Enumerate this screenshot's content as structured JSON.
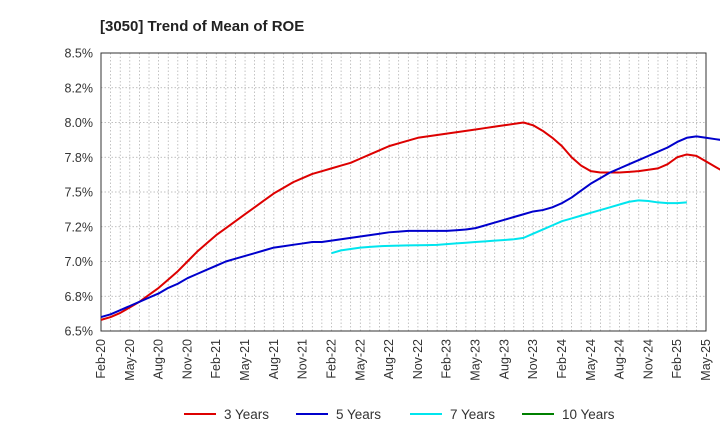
{
  "chart_data": {
    "type": "line",
    "title": "[3050]  Trend of Mean of ROE",
    "xlabel": "",
    "ylabel": "",
    "ylim": [
      6.5,
      8.5
    ],
    "yticks": [
      "6.5%",
      "6.8%",
      "7.0%",
      "7.2%",
      "7.5%",
      "7.8%",
      "8.0%",
      "8.2%",
      "8.5%"
    ],
    "xticks": [
      "Feb-20",
      "May-20",
      "Aug-20",
      "Nov-20",
      "Feb-21",
      "May-21",
      "Aug-21",
      "Nov-21",
      "Feb-22",
      "May-22",
      "Aug-22",
      "Nov-22",
      "Feb-23",
      "May-23",
      "Aug-23",
      "Nov-23",
      "Feb-24",
      "May-24",
      "Aug-24",
      "Nov-24",
      "Feb-25",
      "May-25"
    ],
    "grid": true,
    "legend_position": "bottom",
    "series": [
      {
        "name": "3 Years",
        "color": "#dd0000",
        "start_month": 0,
        "values": [
          6.58,
          6.6,
          6.63,
          6.67,
          6.71,
          6.76,
          6.81,
          6.87,
          6.93,
          7.0,
          7.07,
          7.13,
          7.19,
          7.24,
          7.29,
          7.34,
          7.39,
          7.44,
          7.49,
          7.53,
          7.57,
          7.6,
          7.63,
          7.65,
          7.67,
          7.69,
          7.71,
          7.74,
          7.77,
          7.8,
          7.83,
          7.85,
          7.87,
          7.89,
          7.9,
          7.91,
          7.92,
          7.93,
          7.94,
          7.95,
          7.96,
          7.97,
          7.98,
          7.99,
          8.0,
          7.98,
          7.94,
          7.89,
          7.83,
          7.75,
          7.69,
          7.65,
          7.64,
          7.64,
          7.64,
          7.645,
          7.65,
          7.66,
          7.67,
          7.7,
          7.75,
          7.77,
          7.76,
          7.72,
          7.68,
          7.64
        ]
      },
      {
        "name": "5 Years",
        "color": "#0000cc",
        "start_month": 0,
        "values": [
          6.6,
          6.62,
          6.65,
          6.68,
          6.71,
          6.74,
          6.77,
          6.81,
          6.84,
          6.88,
          6.91,
          6.94,
          6.97,
          7.0,
          7.02,
          7.04,
          7.06,
          7.08,
          7.1,
          7.11,
          7.12,
          7.13,
          7.14,
          7.14,
          7.15,
          7.16,
          7.17,
          7.18,
          7.19,
          7.2,
          7.21,
          7.215,
          7.22,
          7.22,
          7.22,
          7.22,
          7.22,
          7.225,
          7.23,
          7.24,
          7.26,
          7.28,
          7.3,
          7.32,
          7.34,
          7.36,
          7.37,
          7.39,
          7.42,
          7.46,
          7.51,
          7.56,
          7.6,
          7.64,
          7.67,
          7.7,
          7.73,
          7.76,
          7.79,
          7.82,
          7.86,
          7.89,
          7.9,
          7.89,
          7.88,
          7.87,
          7.865
        ]
      },
      {
        "name": "7 Years",
        "color": "#00e5ee",
        "start_month": 24,
        "values": [
          7.06,
          7.08,
          7.09,
          7.1,
          7.105,
          7.11,
          7.112,
          7.114,
          7.116,
          7.117,
          7.118,
          7.12,
          7.125,
          7.13,
          7.135,
          7.14,
          7.145,
          7.15,
          7.155,
          7.16,
          7.17,
          7.2,
          7.23,
          7.26,
          7.29,
          7.31,
          7.33,
          7.35,
          7.37,
          7.39,
          7.41,
          7.43,
          7.44,
          7.435,
          7.425,
          7.42,
          7.42,
          7.425
        ]
      },
      {
        "name": "10 Years",
        "color": "#008000",
        "start_month": 0,
        "values": []
      }
    ]
  }
}
